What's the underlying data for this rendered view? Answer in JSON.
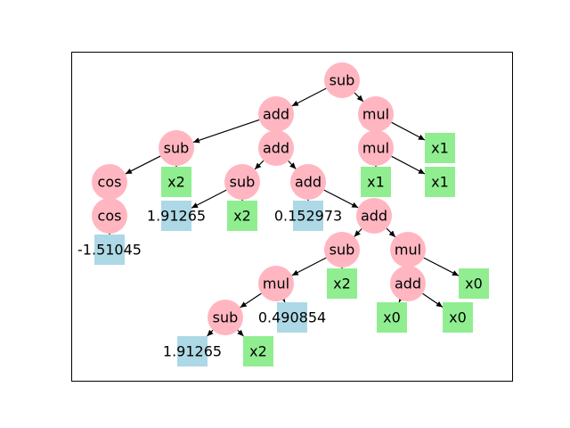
{
  "colors": {
    "operator": "#ffb6c1",
    "variable": "#90ee90",
    "constant": "#add8e6",
    "edge": "#000000",
    "frame": "#000000"
  },
  "nodes": [
    {
      "id": "n1",
      "label": "sub",
      "kind": "operator"
    },
    {
      "id": "n2",
      "label": "add",
      "kind": "operator"
    },
    {
      "id": "n3",
      "label": "mul",
      "kind": "operator"
    },
    {
      "id": "n4",
      "label": "sub",
      "kind": "operator"
    },
    {
      "id": "n5",
      "label": "add",
      "kind": "operator"
    },
    {
      "id": "n6",
      "label": "mul",
      "kind": "operator"
    },
    {
      "id": "n7",
      "label": "x1",
      "kind": "variable"
    },
    {
      "id": "n8",
      "label": "cos",
      "kind": "operator"
    },
    {
      "id": "n9",
      "label": "x2",
      "kind": "variable"
    },
    {
      "id": "n10",
      "label": "sub",
      "kind": "operator"
    },
    {
      "id": "n11",
      "label": "add",
      "kind": "operator"
    },
    {
      "id": "n12",
      "label": "x1",
      "kind": "variable"
    },
    {
      "id": "n13",
      "label": "x1",
      "kind": "variable"
    },
    {
      "id": "n14",
      "label": "cos",
      "kind": "operator"
    },
    {
      "id": "n15",
      "label": "1.91265",
      "kind": "constant"
    },
    {
      "id": "n16",
      "label": "x2",
      "kind": "variable"
    },
    {
      "id": "n17",
      "label": "0.152973",
      "kind": "constant"
    },
    {
      "id": "n18",
      "label": "add",
      "kind": "operator"
    },
    {
      "id": "n19",
      "label": "-1.51045",
      "kind": "constant"
    },
    {
      "id": "n20",
      "label": "sub",
      "kind": "operator"
    },
    {
      "id": "n21",
      "label": "mul",
      "kind": "operator"
    },
    {
      "id": "n22",
      "label": "mul",
      "kind": "operator"
    },
    {
      "id": "n23",
      "label": "x2",
      "kind": "variable"
    },
    {
      "id": "n24",
      "label": "add",
      "kind": "operator"
    },
    {
      "id": "n25",
      "label": "x0",
      "kind": "variable"
    },
    {
      "id": "n26",
      "label": "sub",
      "kind": "operator"
    },
    {
      "id": "n27",
      "label": "0.490854",
      "kind": "constant"
    },
    {
      "id": "n28",
      "label": "x0",
      "kind": "variable"
    },
    {
      "id": "n29",
      "label": "x0",
      "kind": "variable"
    },
    {
      "id": "n30",
      "label": "1.91265",
      "kind": "constant"
    },
    {
      "id": "n31",
      "label": "x2",
      "kind": "variable"
    }
  ],
  "edges": [
    [
      "n1",
      "n2"
    ],
    [
      "n1",
      "n3"
    ],
    [
      "n2",
      "n4"
    ],
    [
      "n2",
      "n5"
    ],
    [
      "n3",
      "n6"
    ],
    [
      "n3",
      "n7"
    ],
    [
      "n4",
      "n8"
    ],
    [
      "n4",
      "n9"
    ],
    [
      "n5",
      "n10"
    ],
    [
      "n5",
      "n11"
    ],
    [
      "n6",
      "n12"
    ],
    [
      "n6",
      "n13"
    ],
    [
      "n8",
      "n14"
    ],
    [
      "n10",
      "n15"
    ],
    [
      "n10",
      "n16"
    ],
    [
      "n11",
      "n17"
    ],
    [
      "n11",
      "n18"
    ],
    [
      "n14",
      "n19"
    ],
    [
      "n18",
      "n20"
    ],
    [
      "n18",
      "n21"
    ],
    [
      "n20",
      "n22"
    ],
    [
      "n20",
      "n23"
    ],
    [
      "n21",
      "n24"
    ],
    [
      "n21",
      "n25"
    ],
    [
      "n22",
      "n26"
    ],
    [
      "n22",
      "n27"
    ],
    [
      "n24",
      "n28"
    ],
    [
      "n24",
      "n29"
    ],
    [
      "n26",
      "n30"
    ],
    [
      "n26",
      "n31"
    ]
  ]
}
